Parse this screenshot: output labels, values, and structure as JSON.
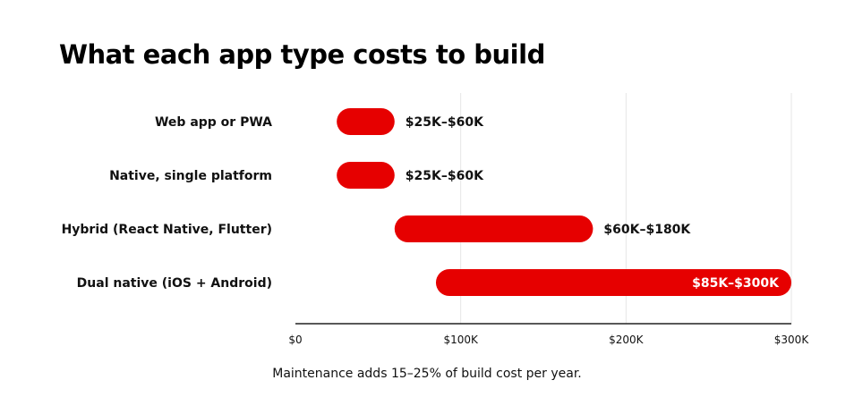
{
  "chart_data": {
    "type": "bar",
    "title": "What each app type costs to build",
    "categories": [
      "Web app or PWA",
      "Native, single platform",
      "Hybrid (React Native, Flutter)",
      "Dual native (iOS + Android)"
    ],
    "ranges": [
      {
        "low": 25000,
        "high": 60000,
        "label": "$25K–$60K"
      },
      {
        "low": 25000,
        "high": 60000,
        "label": "$25K–$60K"
      },
      {
        "low": 60000,
        "high": 180000,
        "label": "$60K–$180K"
      },
      {
        "low": 85000,
        "high": 300000,
        "label": "$85K–$300K"
      }
    ],
    "xlim": [
      0,
      300000
    ],
    "xticks": [
      0,
      100000,
      200000,
      300000
    ],
    "xtick_labels": [
      "$0",
      "$100K",
      "$200K",
      "$300K"
    ],
    "grid": true,
    "bar_color": "#e60000"
  },
  "footnote": "Maintenance adds 15–25% of build cost per year."
}
